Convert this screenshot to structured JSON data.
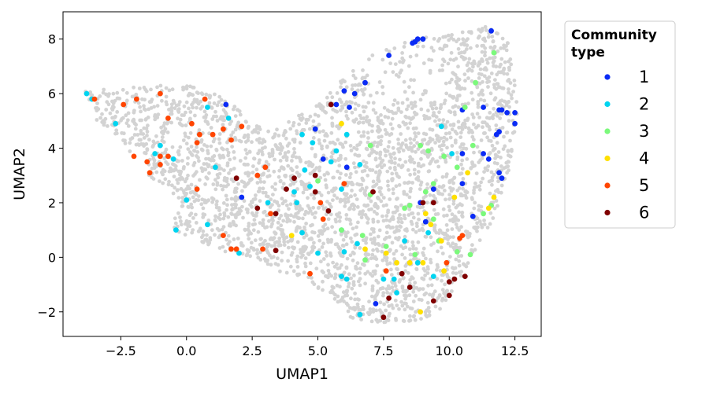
{
  "chart_data": {
    "type": "scatter",
    "xlabel": "UMAP1",
    "ylabel": "UMAP2",
    "xlim": [
      -4.7,
      13.5
    ],
    "ylim": [
      -2.9,
      9.0
    ],
    "xticks": [
      -2.5,
      0.0,
      2.5,
      5.0,
      7.5,
      10.0,
      12.5
    ],
    "xtick_labels": [
      "−2.5",
      "0.0",
      "2.5",
      "5.0",
      "7.5",
      "10.0",
      "12.5"
    ],
    "yticks": [
      -2,
      0,
      2,
      4,
      6,
      8
    ],
    "ytick_labels": [
      "−2",
      "0",
      "2",
      "4",
      "6",
      "8"
    ],
    "grid": false,
    "legend": {
      "title_lines": [
        "Community",
        "type"
      ],
      "placement": "outside-right-top"
    },
    "background_points": {
      "color": "#d3d3d3",
      "description_count": 3000
    },
    "series": [
      {
        "name": "1",
        "color": "#0a2bf5",
        "points": [
          [
            8.7,
            7.9
          ],
          [
            8.8,
            8.0
          ],
          [
            9.0,
            8.0
          ],
          [
            8.6,
            7.85
          ],
          [
            7.7,
            7.4
          ],
          [
            11.6,
            8.3
          ],
          [
            1.5,
            5.6
          ],
          [
            4.9,
            4.7
          ],
          [
            5.7,
            5.6
          ],
          [
            6.0,
            6.1
          ],
          [
            6.2,
            5.5
          ],
          [
            6.4,
            6.0
          ],
          [
            6.8,
            6.4
          ],
          [
            5.2,
            3.6
          ],
          [
            6.1,
            3.3
          ],
          [
            11.3,
            5.5
          ],
          [
            11.9,
            5.4
          ],
          [
            12.0,
            5.4
          ],
          [
            12.2,
            5.3
          ],
          [
            12.5,
            5.3
          ],
          [
            12.5,
            4.9
          ],
          [
            11.9,
            4.6
          ],
          [
            11.8,
            4.5
          ],
          [
            10.5,
            5.4
          ],
          [
            10.5,
            3.8
          ],
          [
            11.3,
            3.8
          ],
          [
            11.5,
            3.6
          ],
          [
            11.9,
            3.1
          ],
          [
            12.0,
            2.9
          ],
          [
            10.5,
            2.7
          ],
          [
            9.4,
            2.5
          ],
          [
            10.9,
            1.5
          ],
          [
            9.1,
            1.3
          ],
          [
            8.9,
            2.0
          ],
          [
            7.2,
            -1.7
          ],
          [
            2.1,
            2.2
          ]
        ]
      },
      {
        "name": "2",
        "color": "#00d4f0",
        "points": [
          [
            -3.8,
            6.0
          ],
          [
            -3.6,
            5.8
          ],
          [
            -2.7,
            4.9
          ],
          [
            -1.2,
            3.8
          ],
          [
            -1.0,
            4.1
          ],
          [
            -0.5,
            3.6
          ],
          [
            -0.4,
            1.0
          ],
          [
            0.0,
            2.1
          ],
          [
            0.8,
            5.5
          ],
          [
            1.1,
            3.3
          ],
          [
            1.6,
            5.1
          ],
          [
            0.8,
            1.2
          ],
          [
            2.0,
            0.15
          ],
          [
            3.1,
            2.0
          ],
          [
            4.1,
            2.4
          ],
          [
            4.2,
            2.0
          ],
          [
            4.4,
            4.5
          ],
          [
            4.5,
            3.2
          ],
          [
            4.4,
            0.9
          ],
          [
            4.7,
            2.6
          ],
          [
            4.8,
            4.2
          ],
          [
            5.0,
            0.15
          ],
          [
            5.5,
            3.5
          ],
          [
            5.7,
            3.9
          ],
          [
            5.9,
            2.5
          ],
          [
            5.9,
            1.0
          ],
          [
            6.1,
            4.5
          ],
          [
            6.0,
            0.2
          ],
          [
            5.9,
            -0.7
          ],
          [
            6.1,
            -0.8
          ],
          [
            6.5,
            0.5
          ],
          [
            6.6,
            3.4
          ],
          [
            6.6,
            -2.1
          ],
          [
            7.5,
            -0.8
          ],
          [
            7.9,
            -0.8
          ],
          [
            8.0,
            -1.3
          ],
          [
            8.3,
            0.6
          ],
          [
            8.8,
            -0.2
          ],
          [
            9.2,
            0.9
          ],
          [
            9.4,
            -0.7
          ],
          [
            9.7,
            4.8
          ],
          [
            10.1,
            3.8
          ]
        ]
      },
      {
        "name": "3",
        "color": "#7bf97b",
        "points": [
          [
            11.7,
            7.5
          ],
          [
            11.0,
            6.4
          ],
          [
            10.6,
            5.5
          ],
          [
            10.9,
            4.1
          ],
          [
            8.9,
            4.1
          ],
          [
            9.2,
            3.9
          ],
          [
            9.8,
            3.7
          ],
          [
            10.3,
            3.3
          ],
          [
            9.4,
            2.7
          ],
          [
            9.1,
            2.4
          ],
          [
            8.3,
            1.8
          ],
          [
            8.5,
            1.9
          ],
          [
            7.0,
            2.3
          ],
          [
            7.0,
            4.1
          ],
          [
            5.0,
            2.8
          ],
          [
            5.9,
            1.0
          ],
          [
            6.7,
            0.8
          ],
          [
            6.8,
            -0.1
          ],
          [
            7.6,
            0.4
          ],
          [
            8.7,
            0.1
          ],
          [
            9.6,
            0.6
          ],
          [
            10.3,
            0.2
          ],
          [
            10.8,
            0.1
          ],
          [
            11.3,
            1.6
          ],
          [
            11.6,
            1.9
          ],
          [
            9.4,
            1.4
          ]
        ]
      },
      {
        "name": "4",
        "color": "#ffe000",
        "points": [
          [
            5.9,
            4.9
          ],
          [
            4.0,
            0.8
          ],
          [
            6.8,
            0.3
          ],
          [
            7.6,
            0.15
          ],
          [
            8.5,
            -0.2
          ],
          [
            8.9,
            -2.0
          ],
          [
            9.1,
            1.6
          ],
          [
            9.3,
            1.2
          ],
          [
            9.0,
            -0.2
          ],
          [
            9.7,
            0.6
          ],
          [
            10.2,
            2.2
          ],
          [
            10.7,
            3.1
          ],
          [
            11.5,
            1.8
          ],
          [
            11.7,
            2.2
          ],
          [
            9.8,
            -0.5
          ],
          [
            8.0,
            -0.2
          ]
        ]
      },
      {
        "name": "5",
        "color": "#ff4500",
        "points": [
          [
            -3.5,
            5.8
          ],
          [
            -2.4,
            5.6
          ],
          [
            -1.9,
            5.8
          ],
          [
            -1.0,
            6.0
          ],
          [
            -2.0,
            3.7
          ],
          [
            -1.5,
            3.5
          ],
          [
            -1.4,
            3.1
          ],
          [
            -1.0,
            3.7
          ],
          [
            -1.0,
            3.4
          ],
          [
            -0.7,
            3.7
          ],
          [
            -0.7,
            5.1
          ],
          [
            0.2,
            4.9
          ],
          [
            0.5,
            4.5
          ],
          [
            0.4,
            4.2
          ],
          [
            0.4,
            2.5
          ],
          [
            0.7,
            5.8
          ],
          [
            1.0,
            4.5
          ],
          [
            1.4,
            4.7
          ],
          [
            1.7,
            4.3
          ],
          [
            2.1,
            4.8
          ],
          [
            1.4,
            0.8
          ],
          [
            1.7,
            0.3
          ],
          [
            1.9,
            0.3
          ],
          [
            2.9,
            0.3
          ],
          [
            2.7,
            3.0
          ],
          [
            3.0,
            3.3
          ],
          [
            3.2,
            1.6
          ],
          [
            4.7,
            -0.6
          ],
          [
            5.2,
            1.4
          ],
          [
            5.1,
            2.0
          ],
          [
            6.0,
            2.7
          ],
          [
            7.6,
            -0.5
          ],
          [
            9.9,
            -0.2
          ],
          [
            10.5,
            0.8
          ],
          [
            10.4,
            0.7
          ]
        ]
      },
      {
        "name": "6",
        "color": "#800000",
        "points": [
          [
            1.9,
            2.9
          ],
          [
            2.7,
            1.8
          ],
          [
            3.4,
            1.6
          ],
          [
            3.4,
            0.25
          ],
          [
            3.8,
            2.5
          ],
          [
            4.1,
            2.9
          ],
          [
            4.9,
            3.0
          ],
          [
            4.9,
            2.4
          ],
          [
            5.4,
            1.7
          ],
          [
            5.5,
            5.6
          ],
          [
            7.1,
            2.4
          ],
          [
            7.5,
            -2.2
          ],
          [
            7.7,
            -1.5
          ],
          [
            8.2,
            -0.6
          ],
          [
            8.5,
            -1.1
          ],
          [
            9.0,
            2.0
          ],
          [
            9.4,
            2.0
          ],
          [
            9.4,
            -1.6
          ],
          [
            10.0,
            -0.9
          ],
          [
            10.0,
            -1.4
          ],
          [
            10.2,
            -0.8
          ],
          [
            10.6,
            -0.7
          ]
        ]
      }
    ]
  }
}
